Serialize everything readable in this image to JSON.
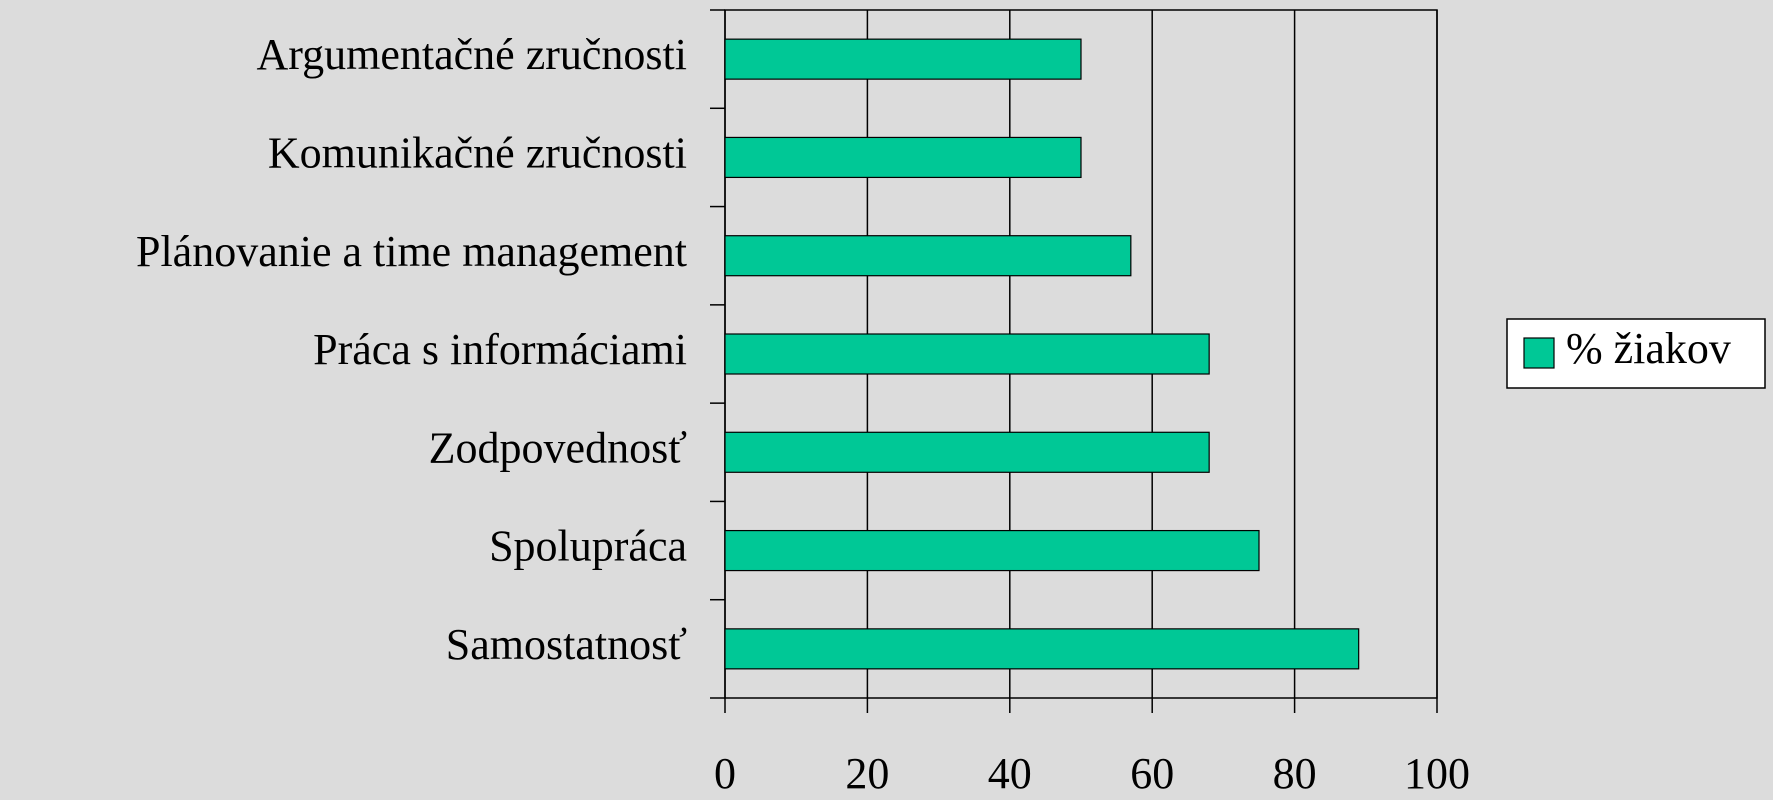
{
  "chart_data": {
    "type": "barh",
    "categories": [
      "Argumentačné zručnosti",
      "Komunikačné zručnosti",
      "Plánovanie a time management",
      "Práca s informáciami",
      "Zodpovednosť",
      "Spolupráca",
      "Samostatnosť"
    ],
    "series": [
      {
        "name": "% žiakov",
        "color": "#00c896",
        "values": [
          50,
          50,
          57,
          68,
          68,
          75,
          89
        ]
      }
    ],
    "xlim": [
      0,
      100
    ],
    "xticks": [
      0,
      20,
      40,
      60,
      80,
      100
    ],
    "grid": true,
    "legend": "right"
  }
}
